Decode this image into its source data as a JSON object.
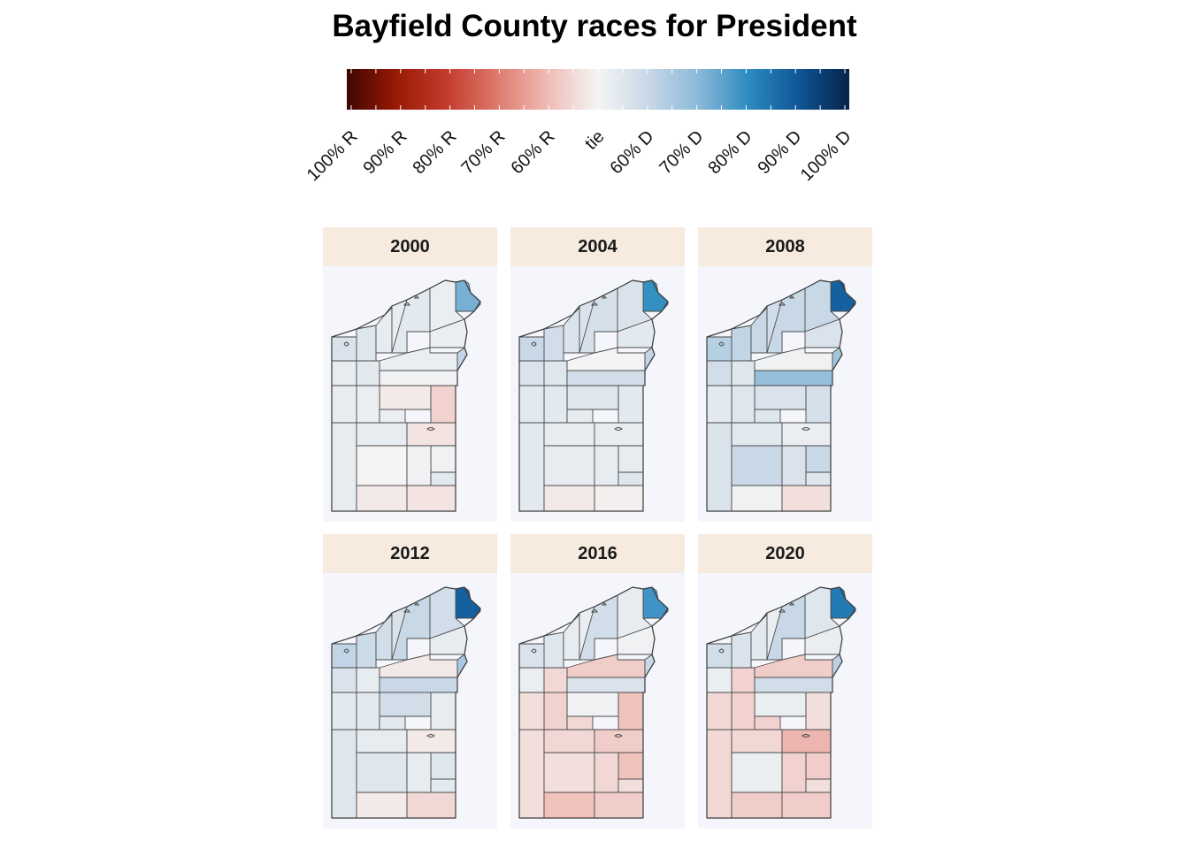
{
  "title": "Bayfield County races for President",
  "legend": {
    "labels": [
      "100% R",
      "90% R",
      "80% R",
      "70% R",
      "60% R",
      "tie",
      "60% D",
      "70% D",
      "80% D",
      "90% D",
      "100% D"
    ],
    "colors": [
      "#3f0602",
      "#9a1a05",
      "#c43c2e",
      "#de7a6d",
      "#efbcb6",
      "#f4f4f4",
      "#c8d8e7",
      "#8ab9d8",
      "#2c8bc0",
      "#0f5595",
      "#062348"
    ]
  },
  "panels": [
    {
      "year": "2000",
      "regions": {
        "r1": 0.56,
        "r2": 0.53,
        "r3": 0.55,
        "r4": 0.53,
        "r5": 0.53,
        "r6": 0.54,
        "r7": 0.72,
        "r8": 0.52,
        "r9": 0.52,
        "r10": 0.54,
        "r11": 0.52,
        "r12": 0.51,
        "r13": 0.48,
        "r14": 0.52,
        "r15": 0.53,
        "r16": 0.52,
        "r17": 0.61,
        "r18": 0.53,
        "r19": 0.53,
        "r20": 0.47,
        "r21": 0.44,
        "r22": 0.5,
        "r23": 0.51,
        "r24": 0.51,
        "r25": 0.54,
        "r26": 0.48,
        "r27": 0.47
      }
    },
    {
      "year": "2004",
      "regions": {
        "r1": 0.6,
        "r2": 0.56,
        "r3": 0.58,
        "r4": 0.56,
        "r5": 0.56,
        "r6": 0.57,
        "r7": 0.79,
        "r8": 0.56,
        "r9": 0.54,
        "r10": 0.55,
        "r11": 0.5,
        "r12": 0.58,
        "r13": 0.55,
        "r14": 0.54,
        "r15": 0.54,
        "r16": 0.53,
        "r17": 0.61,
        "r18": 0.54,
        "r19": 0.53,
        "r20": 0.53,
        "r21": 0.54,
        "r22": 0.53,
        "r23": 0.53,
        "r24": 0.53,
        "r25": 0.55,
        "r26": 0.48,
        "r27": 0.49
      }
    },
    {
      "year": "2008",
      "regions": {
        "r1": 0.63,
        "r2": 0.58,
        "r3": 0.61,
        "r4": 0.6,
        "r5": 0.58,
        "r6": 0.6,
        "r7": 0.88,
        "r8": 0.6,
        "r9": 0.56,
        "r10": 0.55,
        "r11": 0.51,
        "r12": 0.68,
        "r13": 0.56,
        "r14": 0.55,
        "r15": 0.54,
        "r16": 0.55,
        "r17": 0.66,
        "r18": 0.56,
        "r19": 0.54,
        "r20": 0.52,
        "r21": 0.57,
        "r22": 0.6,
        "r23": 0.6,
        "r24": 0.56,
        "r25": 0.55,
        "r26": 0.51,
        "r27": 0.46
      }
    },
    {
      "year": "2012",
      "regions": {
        "r1": 0.61,
        "r2": 0.56,
        "r3": 0.59,
        "r4": 0.58,
        "r5": 0.56,
        "r6": 0.6,
        "r7": 0.88,
        "r8": 0.58,
        "r9": 0.53,
        "r10": 0.53,
        "r11": 0.48,
        "r12": 0.6,
        "r13": 0.58,
        "r14": 0.54,
        "r15": 0.54,
        "r16": 0.54,
        "r17": 0.65,
        "r18": 0.55,
        "r19": 0.53,
        "r20": 0.48,
        "r21": 0.53,
        "r22": 0.55,
        "r23": 0.55,
        "r24": 0.53,
        "r25": 0.54,
        "r26": 0.48,
        "r27": 0.45
      }
    },
    {
      "year": "2016",
      "regions": {
        "r1": 0.56,
        "r2": 0.52,
        "r3": 0.55,
        "r4": 0.53,
        "r5": 0.52,
        "r6": 0.58,
        "r7": 0.78,
        "r8": 0.53,
        "r9": 0.51,
        "r10": 0.45,
        "r11": 0.43,
        "r12": 0.56,
        "r13": 0.51,
        "r14": 0.44,
        "r15": 0.46,
        "r16": 0.45,
        "r17": 0.6,
        "r18": 0.46,
        "r19": 0.45,
        "r20": 0.43,
        "r21": 0.41,
        "r22": 0.46,
        "r23": 0.41,
        "r24": 0.45,
        "r25": 0.46,
        "r26": 0.41,
        "r27": 0.43
      }
    },
    {
      "year": "2020",
      "regions": {
        "r1": 0.58,
        "r2": 0.52,
        "r3": 0.56,
        "r4": 0.54,
        "r5": 0.52,
        "r6": 0.6,
        "r7": 0.83,
        "r8": 0.55,
        "r9": 0.52,
        "r10": 0.44,
        "r11": 0.43,
        "r12": 0.58,
        "r13": 0.52,
        "r14": 0.44,
        "r15": 0.45,
        "r16": 0.44,
        "r17": 0.62,
        "r18": 0.45,
        "r19": 0.45,
        "r20": 0.39,
        "r21": 0.46,
        "r22": 0.52,
        "r23": 0.43,
        "r24": 0.44,
        "r25": 0.46,
        "r26": 0.43,
        "r27": 0.43
      }
    }
  ]
}
